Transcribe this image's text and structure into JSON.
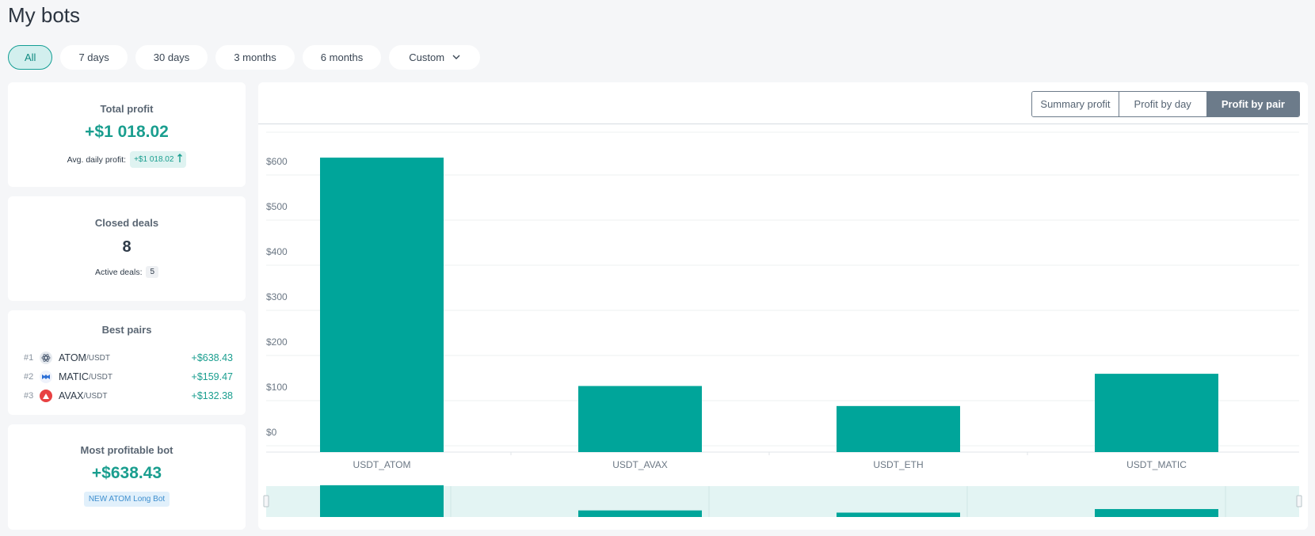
{
  "page": {
    "title": "My bots"
  },
  "filters": {
    "items": [
      {
        "label": "All",
        "active": true
      },
      {
        "label": "7 days"
      },
      {
        "label": "30 days"
      },
      {
        "label": "3 months"
      },
      {
        "label": "6 months"
      },
      {
        "label": "Custom",
        "has_dropdown": true
      }
    ]
  },
  "total_profit": {
    "title": "Total profit",
    "value": "+$1 018.02",
    "avg_label": "Avg. daily profit:",
    "avg_value": "+$1 018.02"
  },
  "closed_deals": {
    "title": "Closed deals",
    "value": "8",
    "active_label": "Active deals:",
    "active_value": "5"
  },
  "best_pairs": {
    "title": "Best pairs",
    "items": [
      {
        "rank": "#1",
        "base": "ATOM",
        "quote": "/USDT",
        "value": "+$638.43",
        "icon": "atom-icon"
      },
      {
        "rank": "#2",
        "base": "MATIC",
        "quote": "/USDT",
        "value": "+$159.47",
        "icon": "matic-icon"
      },
      {
        "rank": "#3",
        "base": "AVAX",
        "quote": "/USDT",
        "value": "+$132.38",
        "icon": "avax-icon"
      }
    ]
  },
  "most_profitable": {
    "title": "Most profitable bot",
    "value": "+$638.43",
    "bot_name": "NEW ATOM Long Bot"
  },
  "chart_tabs": {
    "items": [
      {
        "label": "Summary profit"
      },
      {
        "label": "Profit by day"
      },
      {
        "label": "Profit by pair",
        "active": true
      }
    ]
  },
  "colors": {
    "accent": "#1a9e8f",
    "bar": "#00a59a",
    "navigator_bg": "#e3f4f3"
  },
  "chart_data": {
    "type": "bar",
    "categories": [
      "USDT_ATOM",
      "USDT_AVAX",
      "USDT_ETH",
      "USDT_MATIC"
    ],
    "values": [
      638.43,
      132.38,
      88,
      159.47
    ],
    "ylim": [
      0,
      700
    ],
    "yticks": [
      0,
      100,
      200,
      300,
      400,
      500,
      600
    ],
    "ytick_labels": [
      "$0",
      "$100",
      "$200",
      "$300",
      "$400",
      "$500",
      "$600"
    ],
    "grid": true,
    "has_navigator": true
  }
}
